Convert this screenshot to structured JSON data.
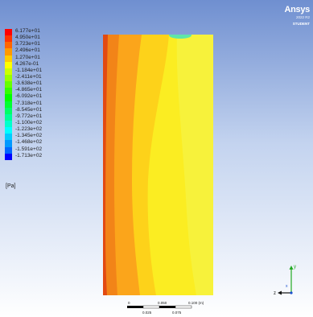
{
  "brand": {
    "name": "Ansys",
    "version": "2022 R2",
    "edition": "STUDENT"
  },
  "legend": {
    "labels": [
      "6.177e+01",
      "4.950e+01",
      "3.723e+01",
      "2.496e+01",
      "1.270e+01",
      "4.267e-01",
      "-1.184e+01",
      "-2.411e+01",
      "-3.638e+01",
      "-4.865e+01",
      "-6.092e+01",
      "-7.318e+01",
      "-8.545e+01",
      "-9.772e+01",
      "-1.100e+02",
      "-1.223e+02",
      "-1.345e+02",
      "-1.468e+02",
      "-1.591e+02",
      "-1.713e+02"
    ],
    "colors": [
      "#ff0000",
      "#ff3300",
      "#ff6600",
      "#ff9900",
      "#ffcc00",
      "#ffff00",
      "#ccff00",
      "#99ff00",
      "#66ff00",
      "#33ff00",
      "#00ff00",
      "#00ff33",
      "#00ff66",
      "#00ff99",
      "#00ffcc",
      "#00ffff",
      "#00ccff",
      "#0099ff",
      "#0066ff",
      "#0000ff"
    ],
    "unit": "[Pa]"
  },
  "scale": {
    "ticks_top": [
      "0",
      "0.050",
      "0.100 (m)"
    ],
    "ticks_bottom": [
      "0.025",
      "0.075"
    ]
  },
  "triad": {
    "y": "y",
    "z": "z",
    "x": "x"
  },
  "contour": {
    "colors": {
      "edge": "#e24a12",
      "outer": "#f28418",
      "mid": "#fba51b",
      "inner": "#fdd21a",
      "core": "#fbed22",
      "right": "#f7f23b",
      "low": "#5fe6a8"
    }
  }
}
